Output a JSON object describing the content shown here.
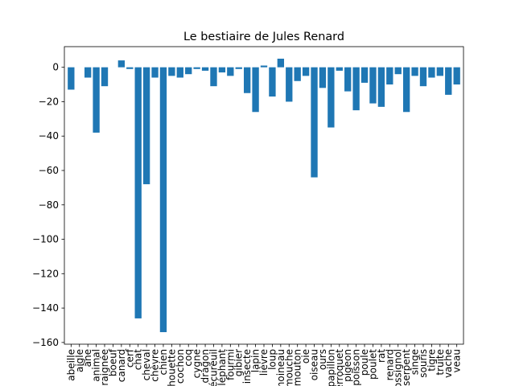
{
  "chart_data": {
    "type": "bar",
    "title": "Le bestiaire de Jules Renard",
    "xlabel": "",
    "ylabel": "",
    "ylim": [
      -161,
      12
    ],
    "yticks": [
      0,
      -20,
      -40,
      -60,
      -80,
      -100,
      -120,
      -140,
      -160
    ],
    "grid": false,
    "color": "#1f77b4",
    "categories": [
      "abeille",
      "aigle",
      "âne",
      "animal",
      "araignée",
      "boeuf",
      "canard",
      "cerf",
      "chat",
      "cheval",
      "chèvre",
      "chien",
      "chouette",
      "cochon",
      "coq",
      "cygne",
      "dragon",
      "écureuil",
      "éléphant",
      "fourmi",
      "gibier",
      "insecte",
      "lapin",
      "lièvre",
      "loup",
      "moineau",
      "mouche",
      "mouton",
      "oie",
      "oiseau",
      "ours",
      "papillon",
      "perroquet",
      "pigeon",
      "poisson",
      "poule",
      "poulet",
      "rat",
      "renard",
      "rossignol",
      "serpent",
      "singe",
      "souris",
      "tigre",
      "truite",
      "vache",
      "veau"
    ],
    "values": [
      -13,
      0,
      -6,
      -38,
      -11,
      0,
      4,
      -1,
      -146,
      -68,
      -6,
      -154,
      -5,
      -6,
      -4,
      -1,
      -2,
      -11,
      -3,
      -5,
      -1,
      -15,
      -26,
      1,
      -17,
      5,
      -20,
      -8,
      -5,
      -64,
      -12,
      -35,
      -2,
      -14,
      -25,
      -9,
      -21,
      -23,
      -10,
      -4,
      -26,
      -5,
      -11,
      -6,
      -5,
      -16,
      -10
    ]
  }
}
